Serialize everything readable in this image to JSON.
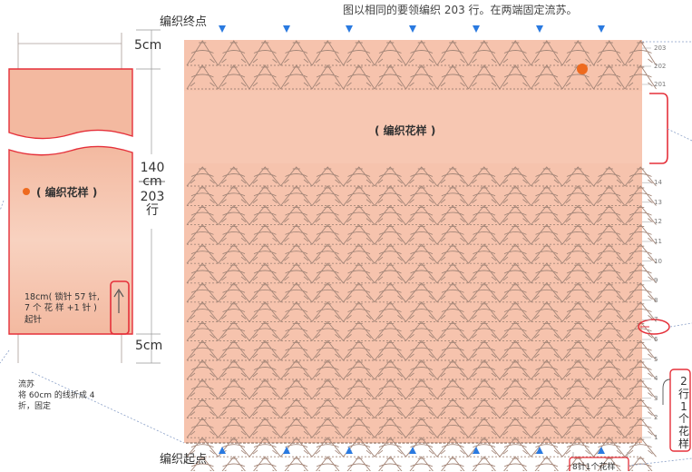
{
  "header_note": "图以相同的要领编织 203 行。在两端固定流苏。",
  "end_label": "编织终点",
  "start_label": "编织起点",
  "dims": {
    "top_cm": "5cm",
    "bottom_cm": "5cm",
    "total_cm": "140",
    "total_unit": "cm",
    "total_rows": "203",
    "total_rows_unit": "行"
  },
  "pattern_label_left": "( 编织花样 )",
  "pattern_label_main": "( 编织花样 )",
  "width_note": {
    "line1": "18cm( 锁针 57 针,",
    "line2": "7 个 花 样 +1 针 )",
    "line3": "起针"
  },
  "fringe_note": {
    "line1": "流苏",
    "line2": "将 60cm 的线折成 4",
    "line3": "折，固定"
  },
  "repeat_note": [
    "2",
    "行",
    "1",
    "个",
    "花",
    "样"
  ],
  "multiple_note": "8针1个花样",
  "row_numbers_top": [
    "203",
    "202",
    "201"
  ],
  "row_numbers_bottom": [
    "14",
    "13",
    "12",
    "11",
    "10",
    "9",
    "8",
    "7",
    "6",
    "5",
    "4",
    "3",
    "2",
    "1"
  ],
  "colors": {
    "fabric": "#f6c3ad",
    "fabric_light": "#fbe3d6",
    "highlight": "#e5303a",
    "marker": "#2a7ae0",
    "dot": "#ee6a1f",
    "stitch": "#a48678"
  }
}
